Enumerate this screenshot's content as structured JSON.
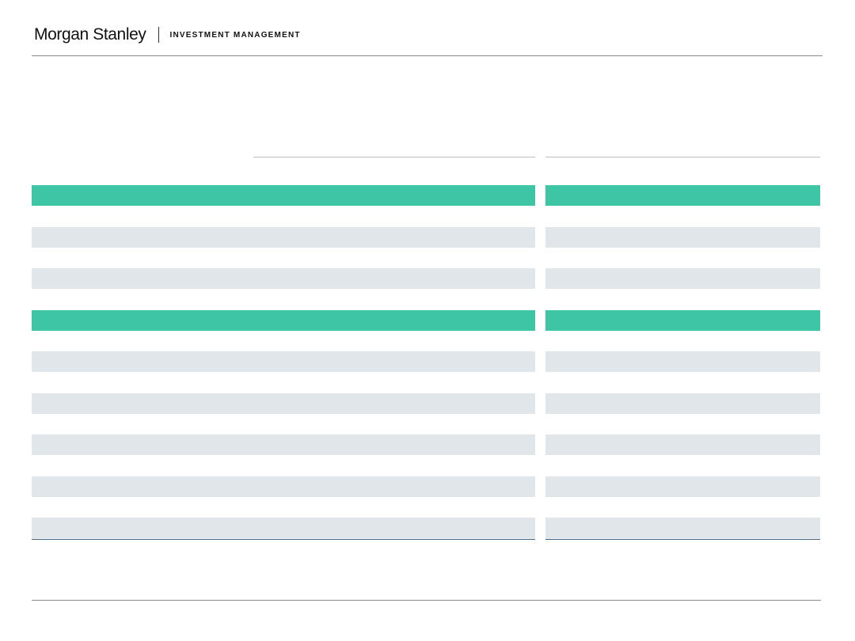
{
  "header": {
    "brand": "Morgan Stanley",
    "division": "INVESTMENT MANAGEMENT"
  },
  "colors": {
    "accent": "#3ec5a5",
    "band": "#e1e6ea",
    "rule": "#8a8a8a"
  },
  "table": {
    "left_rows": [
      "hdr",
      "blank",
      "band",
      "blank",
      "band",
      "blank",
      "hdr",
      "blank",
      "band",
      "blank",
      "band",
      "blank",
      "band",
      "blank",
      "band",
      "blank",
      "band"
    ],
    "right_rows": [
      "hdr",
      "blank",
      "band",
      "blank",
      "band",
      "blank",
      "hdr",
      "blank",
      "band",
      "blank",
      "band",
      "blank",
      "band",
      "blank",
      "band",
      "blank",
      "band"
    ]
  }
}
